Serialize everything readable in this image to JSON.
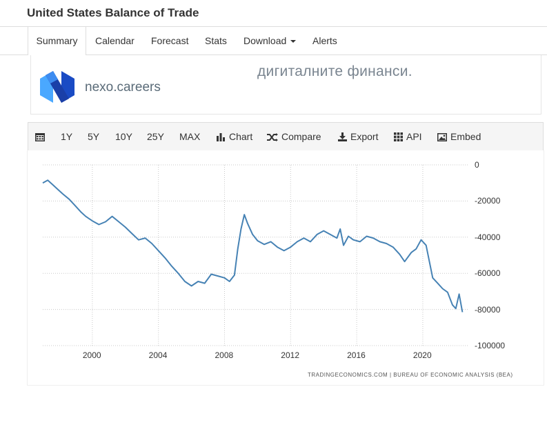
{
  "page": {
    "title": "United States Balance of Trade"
  },
  "tabs": [
    {
      "label": "Summary",
      "active": true
    },
    {
      "label": "Calendar"
    },
    {
      "label": "Forecast"
    },
    {
      "label": "Stats"
    },
    {
      "label": "Download",
      "dropdown": true
    },
    {
      "label": "Alerts"
    }
  ],
  "ad": {
    "brand": "nexo.careers",
    "text_partial": "дигиталните финанси.",
    "logo_colors": [
      "#1a4bc4",
      "#4aa8ff"
    ]
  },
  "toolbar": {
    "calendar_icon": "calendar-icon",
    "ranges": [
      "1Y",
      "5Y",
      "10Y",
      "25Y",
      "MAX"
    ],
    "chart_label": "Chart",
    "compare_label": "Compare",
    "export_label": "Export",
    "api_label": "API",
    "embed_label": "Embed"
  },
  "chart_data": {
    "type": "line",
    "title": "",
    "xlabel": "",
    "ylabel": "",
    "xlim": [
      1997.0,
      2022.8
    ],
    "ylim": [
      -100000,
      0
    ],
    "x_ticks": [
      "2000",
      "2004",
      "2008",
      "2012",
      "2016",
      "2020"
    ],
    "y_ticks": [
      "0",
      "-20000",
      "-40000",
      "-60000",
      "-80000",
      "-100000"
    ],
    "grid": true,
    "line_color": "#4682b4",
    "series": [
      {
        "x": [
          1997.0,
          1997.3,
          1997.6,
          1997.9,
          1998.2,
          1998.6,
          1998.9,
          1999.3,
          1999.6,
          2000.0,
          2000.4,
          2000.8,
          2001.2,
          2001.6,
          2002.0,
          2002.4,
          2002.8,
          2003.2,
          2003.6,
          2004.0,
          2004.4,
          2004.8,
          2005.2,
          2005.6,
          2006.0,
          2006.4,
          2006.8,
          2007.2,
          2007.6,
          2008.0,
          2008.3,
          2008.6,
          2008.8,
          2009.0,
          2009.2,
          2009.4,
          2009.7,
          2010.0,
          2010.4,
          2010.8,
          2011.2,
          2011.6,
          2012.0,
          2012.4,
          2012.8,
          2013.2,
          2013.6,
          2014.0,
          2014.4,
          2014.8,
          2015.0,
          2015.2,
          2015.5,
          2015.8,
          2016.2,
          2016.6,
          2017.0,
          2017.4,
          2017.8,
          2018.2,
          2018.6,
          2018.9,
          2019.3,
          2019.6,
          2019.9,
          2020.2,
          2020.4,
          2020.6,
          2020.9,
          2021.2,
          2021.5,
          2021.8,
          2022.0,
          2022.2,
          2022.4
        ],
        "y": [
          -10000,
          -8500,
          -11000,
          -13500,
          -16000,
          -19000,
          -22000,
          -26000,
          -28500,
          -31000,
          -33000,
          -31500,
          -28500,
          -31500,
          -34500,
          -38000,
          -41500,
          -40500,
          -43500,
          -47500,
          -51500,
          -56000,
          -60000,
          -64500,
          -67000,
          -64500,
          -65500,
          -60500,
          -61500,
          -62500,
          -64500,
          -61000,
          -46500,
          -35500,
          -27500,
          -32500,
          -38500,
          -42000,
          -44000,
          -42500,
          -45500,
          -47500,
          -45500,
          -42500,
          -40500,
          -42500,
          -38500,
          -36500,
          -38500,
          -40500,
          -35500,
          -44500,
          -39500,
          -41500,
          -42500,
          -39500,
          -40500,
          -42500,
          -43500,
          -45500,
          -49500,
          -53500,
          -48500,
          -46500,
          -41500,
          -44500,
          -53500,
          -62500,
          -65500,
          -68500,
          -70500,
          -77500,
          -79500,
          -71500,
          -81500
        ]
      }
    ],
    "source": "TRADINGECONOMICS.COM | BUREAU OF ECONOMIC ANALYSIS (BEA)"
  }
}
